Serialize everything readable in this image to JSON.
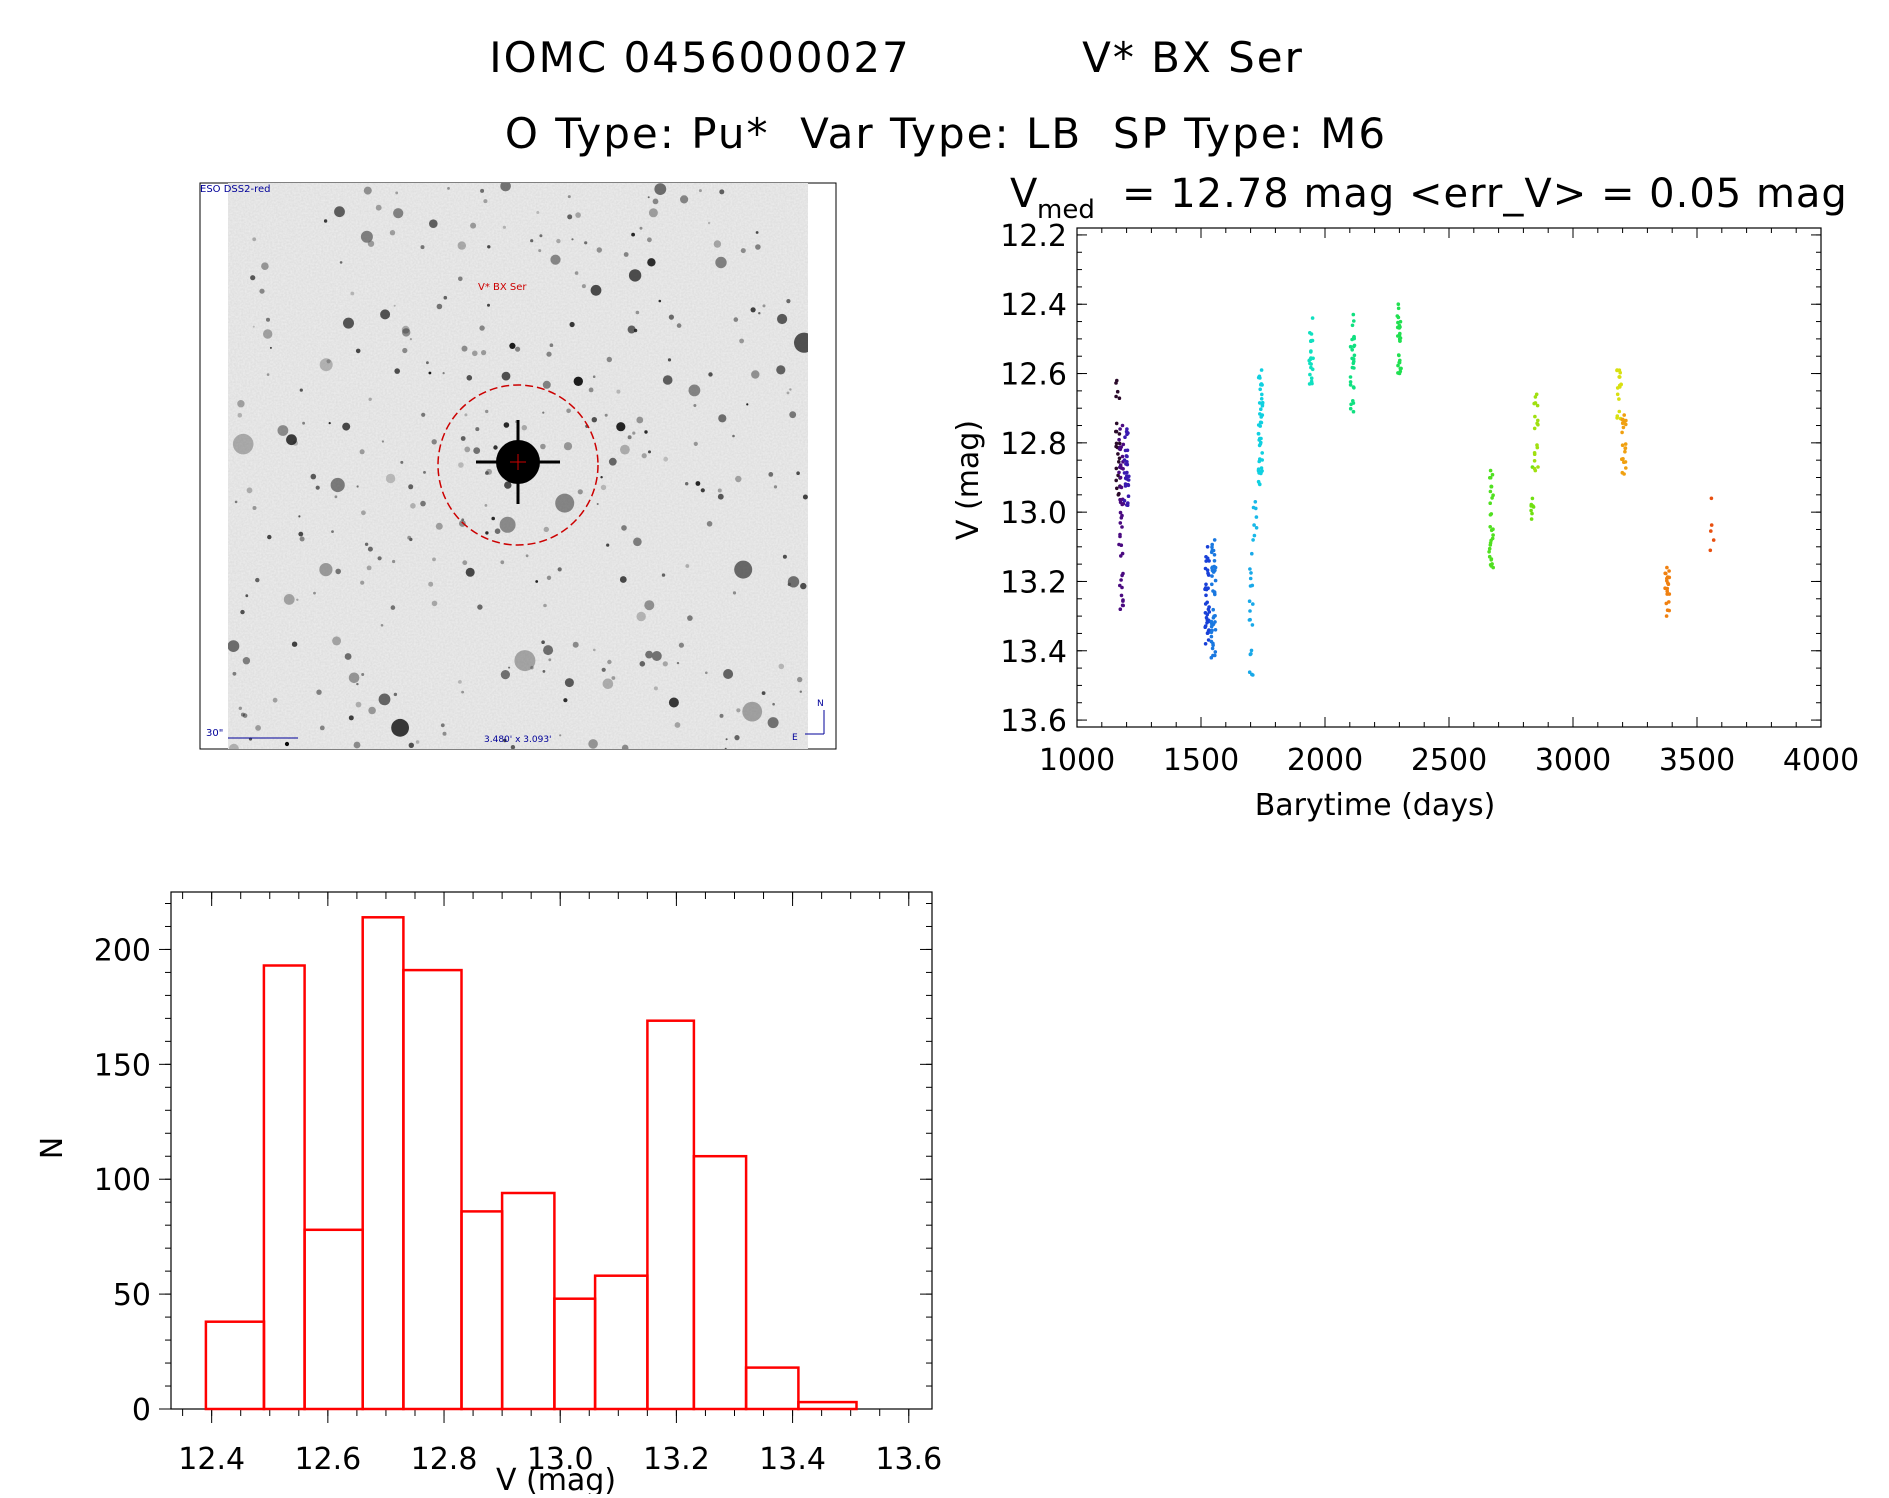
{
  "header": {
    "line1_left": "IOMC 0456000027",
    "line1_right": "V* BX Ser",
    "line2": "O Type: Pu*  Var Type: LB  SP Type: M6"
  },
  "image_panel": {
    "survey_label": "ESO DSS2-red",
    "target_label": "V* BX Ser",
    "scale_label": "30\"",
    "size_label": "3.480' x 3.093'",
    "north_label": "N",
    "east_label": "E"
  },
  "colors": {
    "histogram": "#ff0000",
    "finder_circle": "#cc0000",
    "annotation_blue": "#000099"
  },
  "chart_data": [
    {
      "type": "scatter",
      "title_v": "V",
      "title_sub": "med",
      "title_rest": "= 12.78 mag <err_V> = 0.05 mag",
      "xlabel": "Barytime (days)",
      "ylabel": "V (mag)",
      "xlim": [
        1000,
        4000
      ],
      "ylim": [
        13.62,
        12.18
      ],
      "xticks": [
        1000,
        1500,
        2000,
        2500,
        3000,
        3500,
        4000
      ],
      "xticklabels": [
        "1000",
        "1500",
        "2000",
        "2500",
        "3000",
        "3500",
        "4000"
      ],
      "yticks": [
        12.2,
        12.4,
        12.6,
        12.8,
        13.0,
        13.2,
        13.4,
        13.6
      ],
      "yticklabels": [
        "12.2",
        "12.4",
        "12.6",
        "12.8",
        "13.0",
        "13.2",
        "13.4",
        "13.6"
      ],
      "clusters": [
        {
          "x": 1165,
          "y_min": 12.62,
          "y_max": 12.95,
          "n": 25,
          "color": "#2a0a2a"
        },
        {
          "x": 1178,
          "y_min": 12.75,
          "y_max": 13.28,
          "n": 45,
          "color": "#4a0a80"
        },
        {
          "x": 1200,
          "y_min": 12.76,
          "y_max": 12.98,
          "n": 30,
          "color": "#3a1ab0"
        },
        {
          "x": 1525,
          "y_min": 13.1,
          "y_max": 13.38,
          "n": 35,
          "color": "#1840d8"
        },
        {
          "x": 1550,
          "y_min": 13.08,
          "y_max": 13.42,
          "n": 45,
          "color": "#1a78e0"
        },
        {
          "x": 1700,
          "y_min": 13.12,
          "y_max": 13.47,
          "n": 18,
          "color": "#18a8e8"
        },
        {
          "x": 1718,
          "y_min": 12.97,
          "y_max": 13.08,
          "n": 8,
          "color": "#18b8e8"
        },
        {
          "x": 1740,
          "y_min": 12.59,
          "y_max": 12.92,
          "n": 45,
          "color": "#10d0e0"
        },
        {
          "x": 1945,
          "y_min": 12.44,
          "y_max": 12.63,
          "n": 22,
          "color": "#10e0c0"
        },
        {
          "x": 2110,
          "y_min": 12.43,
          "y_max": 12.71,
          "n": 28,
          "color": "#10e080"
        },
        {
          "x": 2300,
          "y_min": 12.4,
          "y_max": 12.6,
          "n": 30,
          "color": "#20e050"
        },
        {
          "x": 2670,
          "y_min": 12.88,
          "y_max": 13.16,
          "n": 30,
          "color": "#50e020"
        },
        {
          "x": 2840,
          "y_min": 12.87,
          "y_max": 13.02,
          "n": 10,
          "color": "#70e010"
        },
        {
          "x": 2850,
          "y_min": 12.66,
          "y_max": 12.88,
          "n": 18,
          "color": "#a0e010"
        },
        {
          "x": 3185,
          "y_min": 12.59,
          "y_max": 12.73,
          "n": 18,
          "color": "#d8e010"
        },
        {
          "x": 3205,
          "y_min": 12.72,
          "y_max": 12.89,
          "n": 22,
          "color": "#f0a010"
        },
        {
          "x": 3380,
          "y_min": 13.16,
          "y_max": 13.3,
          "n": 20,
          "color": "#f08010"
        },
        {
          "x": 3560,
          "y_min": 12.96,
          "y_max": 13.11,
          "n": 5,
          "color": "#e85010"
        }
      ]
    },
    {
      "type": "bar",
      "xlabel": "V (mag)",
      "ylabel": "N",
      "xlim": [
        12.33,
        13.64
      ],
      "ylim": [
        0,
        225
      ],
      "xticks": [
        12.4,
        12.6,
        12.8,
        13.0,
        13.2,
        13.4,
        13.6
      ],
      "xticklabels": [
        "12.4",
        "12.6",
        "12.8",
        "13.0",
        "13.2",
        "13.4",
        "13.6"
      ],
      "yticks": [
        0,
        50,
        100,
        150,
        200
      ],
      "yticklabels": [
        "0",
        "50",
        "100",
        "150",
        "200"
      ],
      "bin_edges": [
        12.39,
        12.49,
        12.56,
        12.66,
        12.73,
        12.83,
        12.9,
        12.99,
        13.06,
        13.15,
        13.23,
        13.32,
        13.41,
        13.51
      ],
      "values": [
        38,
        193,
        78,
        214,
        191,
        86,
        94,
        48,
        58,
        169,
        110,
        18,
        3
      ]
    }
  ]
}
